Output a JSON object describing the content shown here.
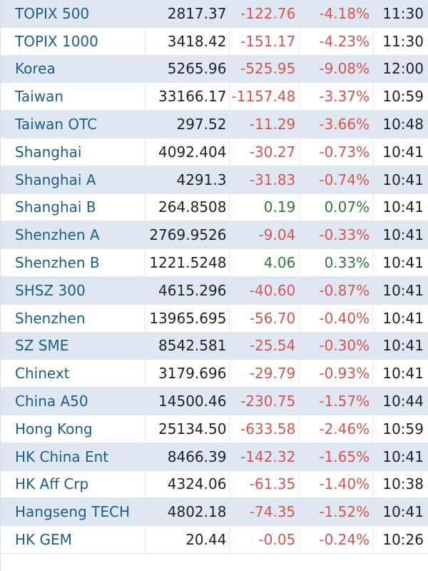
{
  "colors": {
    "name_text": "#1e5e86",
    "negative": "#d9534f",
    "positive": "#2f7a3f",
    "row_shade": "#dfe8f2"
  },
  "rows": [
    {
      "name": "TOPIX 500",
      "last": "2817.37",
      "change": "-122.76",
      "pct": "-4.18%",
      "time": "11:30",
      "dir": "neg"
    },
    {
      "name": "TOPIX 1000",
      "last": "3418.42",
      "change": "-151.17",
      "pct": "-4.23%",
      "time": "11:30",
      "dir": "neg"
    },
    {
      "name": "Korea",
      "last": "5265.96",
      "change": "-525.95",
      "pct": "-9.08%",
      "time": "12:00",
      "dir": "neg"
    },
    {
      "name": "Taiwan",
      "last": "33166.17",
      "change": "-1157.48",
      "pct": "-3.37%",
      "time": "10:59",
      "dir": "neg"
    },
    {
      "name": "Taiwan OTC",
      "last": "297.52",
      "change": "-11.29",
      "pct": "-3.66%",
      "time": "10:48",
      "dir": "neg"
    },
    {
      "name": "Shanghai",
      "last": "4092.404",
      "change": "-30.27",
      "pct": "-0.73%",
      "time": "10:41",
      "dir": "neg"
    },
    {
      "name": "Shanghai A",
      "last": "4291.3",
      "change": "-31.83",
      "pct": "-0.74%",
      "time": "10:41",
      "dir": "neg"
    },
    {
      "name": "Shanghai B",
      "last": "264.8508",
      "change": "0.19",
      "pct": "0.07%",
      "time": "10:41",
      "dir": "pos"
    },
    {
      "name": "Shenzhen A",
      "last": "2769.9526",
      "change": "-9.04",
      "pct": "-0.33%",
      "time": "10:41",
      "dir": "neg"
    },
    {
      "name": "Shenzhen B",
      "last": "1221.5248",
      "change": "4.06",
      "pct": "0.33%",
      "time": "10:41",
      "dir": "pos"
    },
    {
      "name": "SHSZ 300",
      "last": "4615.296",
      "change": "-40.60",
      "pct": "-0.87%",
      "time": "10:41",
      "dir": "neg"
    },
    {
      "name": "Shenzhen",
      "last": "13965.695",
      "change": "-56.70",
      "pct": "-0.40%",
      "time": "10:41",
      "dir": "neg"
    },
    {
      "name": "SZ SME",
      "last": "8542.581",
      "change": "-25.54",
      "pct": "-0.30%",
      "time": "10:41",
      "dir": "neg"
    },
    {
      "name": "Chinext",
      "last": "3179.696",
      "change": "-29.79",
      "pct": "-0.93%",
      "time": "10:41",
      "dir": "neg"
    },
    {
      "name": "China A50",
      "last": "14500.46",
      "change": "-230.75",
      "pct": "-1.57%",
      "time": "10:44",
      "dir": "neg"
    },
    {
      "name": "Hong Kong",
      "last": "25134.50",
      "change": "-633.58",
      "pct": "-2.46%",
      "time": "10:59",
      "dir": "neg"
    },
    {
      "name": "HK China Ent",
      "last": "8466.39",
      "change": "-142.32",
      "pct": "-1.65%",
      "time": "10:41",
      "dir": "neg"
    },
    {
      "name": "HK Aff Crp",
      "last": "4324.06",
      "change": "-61.35",
      "pct": "-1.40%",
      "time": "10:38",
      "dir": "neg"
    },
    {
      "name": "Hangseng TECH",
      "last": "4802.18",
      "change": "-74.35",
      "pct": "-1.52%",
      "time": "10:41",
      "dir": "neg"
    },
    {
      "name": "HK GEM",
      "last": "20.44",
      "change": "-0.05",
      "pct": "-0.24%",
      "time": "10:26",
      "dir": "neg"
    }
  ]
}
